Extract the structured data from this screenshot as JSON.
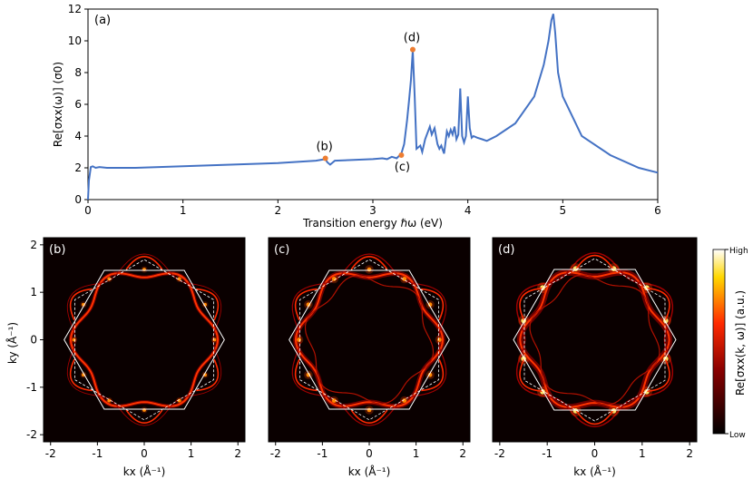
{
  "chart_data": [
    {
      "type": "line",
      "panel_label": "(a)",
      "xlabel": "Transition energy ℏω (eV)",
      "ylabel": "Re[σxx(ω)] (σ0)",
      "xlim": [
        0,
        6
      ],
      "ylim": [
        0,
        12
      ],
      "xticks": [
        "0",
        "1",
        "2",
        "3",
        "4",
        "5",
        "6"
      ],
      "yticks": [
        "0",
        "2",
        "4",
        "6",
        "8",
        "10",
        "12"
      ],
      "line_color": "#4472c4",
      "series": [
        {
          "x": [
            0,
            0.01,
            0.03,
            0.05,
            0.08,
            0.12,
            0.2,
            0.5,
            1.0,
            1.5,
            2.0,
            2.4,
            2.5,
            2.52,
            2.55,
            2.6,
            3.0,
            3.1,
            3.15,
            3.2,
            3.25,
            3.3,
            3.33,
            3.36,
            3.38,
            3.4,
            3.42,
            3.44,
            3.46,
            3.5,
            3.52,
            3.55,
            3.6,
            3.62,
            3.65,
            3.68,
            3.7,
            3.72,
            3.75,
            3.78,
            3.8,
            3.82,
            3.84,
            3.86,
            3.88,
            3.9,
            3.92,
            3.94,
            3.96,
            3.98,
            4.0,
            4.02,
            4.04,
            4.06,
            4.1,
            4.15,
            4.2,
            4.3,
            4.5,
            4.7,
            4.8,
            4.85,
            4.88,
            4.9,
            4.92,
            4.95,
            5.0,
            5.2,
            5.5,
            5.8,
            6.0
          ],
          "y": [
            0,
            1.2,
            2.05,
            2.1,
            2.0,
            2.05,
            2.0,
            2.0,
            2.1,
            2.2,
            2.3,
            2.45,
            2.55,
            2.35,
            2.2,
            2.45,
            2.55,
            2.6,
            2.55,
            2.7,
            2.6,
            2.9,
            3.5,
            5.0,
            6.2,
            7.5,
            9.4,
            6.5,
            3.2,
            3.4,
            3.0,
            3.8,
            4.6,
            4.1,
            4.5,
            3.5,
            3.2,
            3.4,
            2.9,
            4.3,
            4.0,
            4.4,
            4.1,
            4.6,
            3.8,
            4.1,
            7.0,
            4.0,
            3.6,
            4.0,
            6.5,
            4.5,
            3.9,
            4.0,
            3.9,
            3.8,
            3.7,
            4.0,
            4.8,
            6.5,
            8.5,
            10.0,
            11.3,
            11.7,
            10.5,
            8.0,
            6.5,
            4.0,
            2.8,
            2.0,
            1.7
          ]
        }
      ],
      "markers": [
        {
          "label": "(b)",
          "x": 2.5,
          "y": 2.6
        },
        {
          "label": "(c)",
          "x": 3.3,
          "y": 2.8
        },
        {
          "label": "(d)",
          "x": 3.42,
          "y": 9.45
        }
      ],
      "marker_color": "#ed7d31",
      "grid": false
    },
    {
      "type": "heatmap",
      "panel_label": "(b)",
      "xlabel": "kx (Å⁻¹)",
      "ylabel": "ky (Å⁻¹)",
      "xticks": [
        "-2",
        "-1",
        "0",
        "1",
        "2"
      ],
      "yticks": [
        "2",
        "1",
        "0",
        "-1",
        "-2"
      ],
      "xlim": [
        -2.15,
        2.15
      ],
      "ylim": [
        -2.15,
        2.15
      ],
      "background": "#0a0000"
    },
    {
      "type": "heatmap",
      "panel_label": "(c)",
      "xlabel": "kx (Å⁻¹)",
      "xticks": [
        "-2",
        "-1",
        "0",
        "1",
        "2"
      ],
      "xlim": [
        -2.15,
        2.15
      ],
      "ylim": [
        -2.15,
        2.15
      ],
      "background": "#0a0000"
    },
    {
      "type": "heatmap",
      "panel_label": "(d)",
      "xlabel": "kx (Å⁻¹)",
      "xticks": [
        "-2",
        "-1",
        "0",
        "1",
        "2"
      ],
      "xlim": [
        -2.15,
        2.15
      ],
      "ylim": [
        -2.15,
        2.15
      ],
      "background": "#0a0000"
    }
  ],
  "colorbar": {
    "label": "Re[σxx(k, ω)] (a.u.)",
    "high": "High",
    "low": "Low"
  }
}
